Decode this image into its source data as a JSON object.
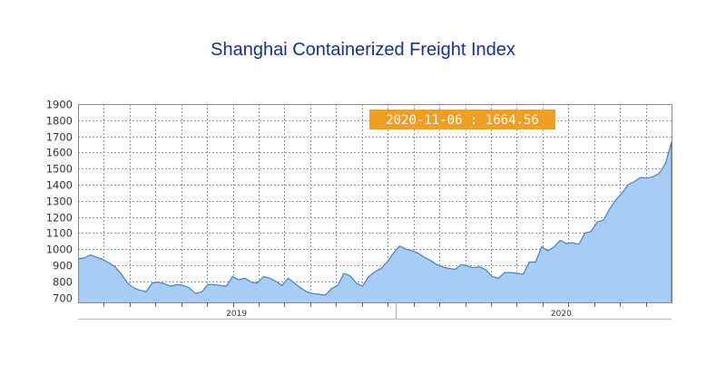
{
  "chart_data": {
    "type": "area",
    "title": "Shanghai Containerized Freight Index",
    "xlabel": "",
    "ylabel": "",
    "ylim": [
      670,
      1900
    ],
    "y_ticks": [
      700,
      800,
      900,
      1000,
      1100,
      1200,
      1300,
      1400,
      1500,
      1600,
      1700,
      1800,
      1900
    ],
    "x_tick_labels": [
      {
        "label": "2019",
        "t": 0.267
      },
      {
        "label": "2020",
        "t": 0.814
      }
    ],
    "grid": true,
    "legend": "none",
    "colors": {
      "fill": "#a8cdf5",
      "line": "#4a7fc0",
      "grid": "#9a9a9a",
      "tooltip_bg": "#f0a020"
    },
    "tooltip": {
      "date": "2020-11-06",
      "value": "1664.56",
      "label": "2020-11-06 : 1664.56"
    },
    "series": [
      {
        "values": [
          940,
          945,
          965,
          950,
          935,
          915,
          890,
          845,
          790,
          760,
          745,
          735,
          790,
          795,
          785,
          770,
          780,
          775,
          760,
          725,
          735,
          780,
          780,
          775,
          770,
          830,
          810,
          820,
          795,
          790,
          830,
          820,
          800,
          775,
          820,
          790,
          760,
          735,
          725,
          720,
          715,
          755,
          775,
          850,
          835,
          790,
          770,
          830,
          860,
          880,
          920,
          975,
          1020,
          1000,
          990,
          975,
          950,
          930,
          905,
          890,
          880,
          875,
          905,
          895,
          885,
          890,
          870,
          830,
          820,
          855,
          855,
          850,
          845,
          920,
          920,
          1015,
          990,
          1015,
          1055,
          1035,
          1040,
          1030,
          1100,
          1110,
          1170,
          1180,
          1250,
          1305,
          1350,
          1400,
          1420,
          1445,
          1440,
          1450,
          1470,
          1530,
          1664.56
        ]
      }
    ]
  }
}
